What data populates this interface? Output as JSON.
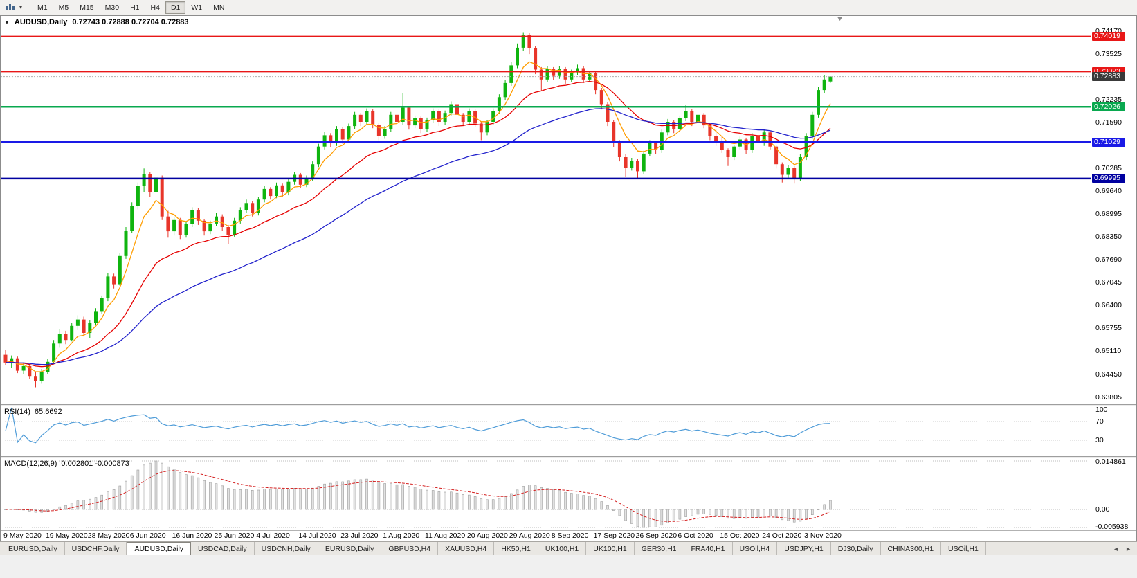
{
  "colors": {
    "up": "#0fb40f",
    "down": "#e8352a",
    "ma_fast": "#ff9d00",
    "ma_mid": "#e60000",
    "ma_slow": "#2222cc",
    "rsi_line": "#4f9cd8",
    "macd_bar_fill": "#e2e2e2",
    "macd_bar_stroke": "#9c9c9c",
    "macd_signal": "#d42020",
    "level_line": "#bcbcbc",
    "current_price_line": "#b0b0b0",
    "current_badge": "#3a3a3a",
    "shift_marker": "#8a8a8a"
  },
  "icons": {
    "chart_menu_caret": "▼",
    "toolbar_caret": "▾",
    "tab_scroll_left": "◄",
    "tab_scroll_right": "►"
  },
  "toolbar": {
    "timeframes": [
      "M1",
      "M5",
      "M15",
      "M30",
      "H1",
      "H4",
      "D1",
      "W1",
      "MN"
    ],
    "active_timeframe": "D1"
  },
  "chart": {
    "title": "AUDUSD,Daily",
    "ohlc_text": "0.72743 0.72888 0.72704 0.72883"
  },
  "chart_data": {
    "type": "candlestick",
    "symbol": "AUDUSD",
    "timeframe": "Daily",
    "last_ohlc": {
      "open": 0.72743,
      "high": 0.72888,
      "low": 0.72704,
      "close": 0.72883
    },
    "current_price": 0.72883,
    "current_price_label": "0.72883",
    "y_range": [
      0.636,
      0.746
    ],
    "x_start": 7,
    "x_step": 8.7,
    "label_every": 7,
    "y_ticks": [
      "0.74170",
      "0.73525",
      "0.72235",
      "0.71590",
      "0.70285",
      "0.69640",
      "0.68995",
      "0.68350",
      "0.67690",
      "0.67045",
      "0.66400",
      "0.65755",
      "0.65110",
      "0.64450",
      "0.63805"
    ],
    "x_labels": [
      "9 May 2020",
      "19 May 2020",
      "28 May 2020",
      "6 Jun 2020",
      "16 Jun 2020",
      "25 Jun 2020",
      "4 Jul 2020",
      "14 Jul 2020",
      "23 Jul 2020",
      "1 Aug 2020",
      "11 Aug 2020",
      "20 Aug 2020",
      "29 Aug 2020",
      "8 Sep 2020",
      "17 Sep 2020",
      "26 Sep 2020",
      "6 Oct 2020",
      "15 Oct 2020",
      "24 Oct 2020",
      "3 Nov 2020"
    ],
    "hlines": [
      {
        "price": 0.74019,
        "label": "0.74019",
        "color": "#e81717",
        "width": 2
      },
      {
        "price": 0.73023,
        "label": "0.73023",
        "color": "#e81717",
        "width": 2
      },
      {
        "price": 0.72026,
        "label": "0.72026",
        "color": "#09a84f",
        "width": 2.5
      },
      {
        "price": 0.71029,
        "label": "0.71029",
        "color": "#1a1ae6",
        "width": 2.5
      },
      {
        "price": 0.69995,
        "label": "0.69995",
        "color": "#0000a0",
        "width": 2.5
      }
    ],
    "moving_averages": [
      {
        "period": 6,
        "color_key": "ma_fast"
      },
      {
        "period": 20,
        "color_key": "ma_mid"
      },
      {
        "period": 45,
        "color_key": "ma_slow"
      }
    ],
    "indicators": {
      "rsi": {
        "label": "RSI(14)",
        "value_text": "65.6692",
        "period": 14,
        "levels": [
          100,
          70,
          30
        ],
        "range": [
          0,
          100
        ]
      },
      "macd": {
        "label": "MACD(12,26,9)",
        "values_text": "0.002801 -0.000873",
        "fast": 12,
        "slow": 26,
        "signal": 9,
        "levels": [
          "0.014861",
          "0.00",
          "-0.005938"
        ]
      }
    },
    "candles": [
      [
        0.65,
        0.6515,
        0.647,
        0.6478
      ],
      [
        0.6478,
        0.6498,
        0.6462,
        0.649
      ],
      [
        0.649,
        0.6495,
        0.6448,
        0.6455
      ],
      [
        0.6455,
        0.6478,
        0.6445,
        0.6468
      ],
      [
        0.6468,
        0.6472,
        0.6432,
        0.644
      ],
      [
        0.644,
        0.6452,
        0.6408,
        0.6425
      ],
      [
        0.6425,
        0.646,
        0.6418,
        0.6452
      ],
      [
        0.6452,
        0.6488,
        0.6446,
        0.648
      ],
      [
        0.648,
        0.6542,
        0.6475,
        0.6532
      ],
      [
        0.6532,
        0.6572,
        0.652,
        0.656
      ],
      [
        0.656,
        0.6568,
        0.653,
        0.6542
      ],
      [
        0.6542,
        0.659,
        0.6538,
        0.6582
      ],
      [
        0.6582,
        0.6612,
        0.657,
        0.66
      ],
      [
        0.66,
        0.6608,
        0.6552,
        0.6562
      ],
      [
        0.6562,
        0.6598,
        0.6548,
        0.659
      ],
      [
        0.659,
        0.6632,
        0.6584,
        0.6622
      ],
      [
        0.6622,
        0.6668,
        0.6616,
        0.666
      ],
      [
        0.666,
        0.6732,
        0.6652,
        0.6722
      ],
      [
        0.6722,
        0.673,
        0.6688,
        0.67
      ],
      [
        0.67,
        0.6788,
        0.6695,
        0.678
      ],
      [
        0.678,
        0.6862,
        0.6772,
        0.6852
      ],
      [
        0.6852,
        0.6932,
        0.6845,
        0.6922
      ],
      [
        0.6922,
        0.6988,
        0.6912,
        0.6978
      ],
      [
        0.6978,
        0.7028,
        0.6962,
        0.7012
      ],
      [
        0.7012,
        0.7018,
        0.6948,
        0.6962
      ],
      [
        0.6962,
        0.7042,
        0.6955,
        0.7002
      ],
      [
        0.7002,
        0.7008,
        0.6882,
        0.6892
      ],
      [
        0.6892,
        0.6908,
        0.6832,
        0.685
      ],
      [
        0.685,
        0.6892,
        0.6838,
        0.6882
      ],
      [
        0.6882,
        0.6888,
        0.6828,
        0.684
      ],
      [
        0.684,
        0.6878,
        0.6832,
        0.687
      ],
      [
        0.687,
        0.6918,
        0.6862,
        0.691
      ],
      [
        0.691,
        0.6915,
        0.6868,
        0.688
      ],
      [
        0.688,
        0.6885,
        0.6838,
        0.685
      ],
      [
        0.685,
        0.688,
        0.6842,
        0.6872
      ],
      [
        0.6872,
        0.6902,
        0.6865,
        0.6892
      ],
      [
        0.6892,
        0.6898,
        0.6852,
        0.6862
      ],
      [
        0.6862,
        0.6868,
        0.6815,
        0.684
      ],
      [
        0.684,
        0.6888,
        0.6835,
        0.688
      ],
      [
        0.688,
        0.6918,
        0.6872,
        0.691
      ],
      [
        0.691,
        0.694,
        0.6902,
        0.693
      ],
      [
        0.693,
        0.6935,
        0.6892,
        0.6902
      ],
      [
        0.6902,
        0.6948,
        0.6895,
        0.694
      ],
      [
        0.694,
        0.6978,
        0.6932,
        0.697
      ],
      [
        0.697,
        0.6975,
        0.694,
        0.695
      ],
      [
        0.695,
        0.6988,
        0.6944,
        0.698
      ],
      [
        0.698,
        0.6985,
        0.6948,
        0.696
      ],
      [
        0.696,
        0.6998,
        0.6952,
        0.699
      ],
      [
        0.699,
        0.7018,
        0.6982,
        0.701
      ],
      [
        0.701,
        0.7015,
        0.6972,
        0.6982
      ],
      [
        0.6982,
        0.7008,
        0.6975,
        0.7
      ],
      [
        0.7,
        0.7048,
        0.6992,
        0.704
      ],
      [
        0.704,
        0.7098,
        0.7032,
        0.709
      ],
      [
        0.709,
        0.7132,
        0.7082,
        0.7122
      ],
      [
        0.7122,
        0.7128,
        0.7088,
        0.71
      ],
      [
        0.71,
        0.7148,
        0.7092,
        0.714
      ],
      [
        0.714,
        0.7145,
        0.7098,
        0.711
      ],
      [
        0.711,
        0.7155,
        0.7102,
        0.7148
      ],
      [
        0.7148,
        0.7188,
        0.714,
        0.718
      ],
      [
        0.718,
        0.7185,
        0.7148,
        0.716
      ],
      [
        0.716,
        0.7198,
        0.7152,
        0.719
      ],
      [
        0.719,
        0.7195,
        0.7142,
        0.7152
      ],
      [
        0.7152,
        0.7158,
        0.7108,
        0.712
      ],
      [
        0.712,
        0.7148,
        0.7112,
        0.714
      ],
      [
        0.714,
        0.7188,
        0.7132,
        0.718
      ],
      [
        0.718,
        0.7186,
        0.7148,
        0.716
      ],
      [
        0.716,
        0.7242,
        0.7152,
        0.72
      ],
      [
        0.72,
        0.7205,
        0.7138,
        0.715
      ],
      [
        0.715,
        0.7178,
        0.7142,
        0.717
      ],
      [
        0.717,
        0.7175,
        0.7128,
        0.714
      ],
      [
        0.714,
        0.7172,
        0.7132,
        0.7165
      ],
      [
        0.7165,
        0.7198,
        0.7158,
        0.719
      ],
      [
        0.719,
        0.7195,
        0.7148,
        0.716
      ],
      [
        0.716,
        0.7192,
        0.7152,
        0.7185
      ],
      [
        0.7185,
        0.7218,
        0.7178,
        0.721
      ],
      [
        0.721,
        0.7215,
        0.7172,
        0.718
      ],
      [
        0.718,
        0.7185,
        0.7148,
        0.716
      ],
      [
        0.716,
        0.7198,
        0.7152,
        0.719
      ],
      [
        0.719,
        0.7195,
        0.7145,
        0.7155
      ],
      [
        0.7155,
        0.716,
        0.7108,
        0.713
      ],
      [
        0.713,
        0.7165,
        0.7122,
        0.716
      ],
      [
        0.716,
        0.7198,
        0.7152,
        0.719
      ],
      [
        0.719,
        0.7238,
        0.7182,
        0.723
      ],
      [
        0.723,
        0.7278,
        0.7222,
        0.727
      ],
      [
        0.727,
        0.733,
        0.7262,
        0.732
      ],
      [
        0.732,
        0.7382,
        0.7312,
        0.737
      ],
      [
        0.737,
        0.7414,
        0.736,
        0.7405
      ],
      [
        0.7405,
        0.7412,
        0.7352,
        0.7368
      ],
      [
        0.7368,
        0.7375,
        0.7295,
        0.7308
      ],
      [
        0.7308,
        0.7315,
        0.7248,
        0.728
      ],
      [
        0.728,
        0.7318,
        0.7272,
        0.731
      ],
      [
        0.731,
        0.7315,
        0.7278,
        0.729
      ],
      [
        0.729,
        0.7318,
        0.7282,
        0.731
      ],
      [
        0.731,
        0.7315,
        0.7268,
        0.728
      ],
      [
        0.728,
        0.7308,
        0.7272,
        0.73
      ],
      [
        0.73,
        0.7322,
        0.7292,
        0.7312
      ],
      [
        0.7312,
        0.7318,
        0.727,
        0.728
      ],
      [
        0.728,
        0.7305,
        0.7272,
        0.7298
      ],
      [
        0.7298,
        0.7302,
        0.7238,
        0.725
      ],
      [
        0.725,
        0.7256,
        0.7195,
        0.721
      ],
      [
        0.721,
        0.7215,
        0.7148,
        0.716
      ],
      [
        0.716,
        0.7165,
        0.7088,
        0.71
      ],
      [
        0.71,
        0.7108,
        0.7048,
        0.706
      ],
      [
        0.706,
        0.7068,
        0.7005,
        0.703
      ],
      [
        0.703,
        0.7058,
        0.7022,
        0.705
      ],
      [
        0.705,
        0.7055,
        0.7,
        0.702
      ],
      [
        0.702,
        0.7078,
        0.7012,
        0.707
      ],
      [
        0.707,
        0.7108,
        0.7062,
        0.71
      ],
      [
        0.71,
        0.7105,
        0.7068,
        0.708
      ],
      [
        0.708,
        0.7138,
        0.7072,
        0.713
      ],
      [
        0.713,
        0.7168,
        0.7122,
        0.716
      ],
      [
        0.716,
        0.7165,
        0.7128,
        0.714
      ],
      [
        0.714,
        0.7178,
        0.7132,
        0.717
      ],
      [
        0.717,
        0.7208,
        0.7162,
        0.719
      ],
      [
        0.719,
        0.7195,
        0.7148,
        0.716
      ],
      [
        0.716,
        0.7188,
        0.7152,
        0.718
      ],
      [
        0.718,
        0.7185,
        0.7142,
        0.715
      ],
      [
        0.715,
        0.7155,
        0.7108,
        0.712
      ],
      [
        0.712,
        0.7138,
        0.7092,
        0.71
      ],
      [
        0.71,
        0.7118,
        0.7072,
        0.708
      ],
      [
        0.708,
        0.7085,
        0.7035,
        0.706
      ],
      [
        0.706,
        0.7095,
        0.7052,
        0.709
      ],
      [
        0.709,
        0.7118,
        0.7082,
        0.711
      ],
      [
        0.711,
        0.7115,
        0.7068,
        0.708
      ],
      [
        0.708,
        0.7128,
        0.7072,
        0.712
      ],
      [
        0.712,
        0.7125,
        0.7088,
        0.71
      ],
      [
        0.71,
        0.7138,
        0.7092,
        0.713
      ],
      [
        0.713,
        0.7135,
        0.7082,
        0.709
      ],
      [
        0.709,
        0.7095,
        0.7028,
        0.704
      ],
      [
        0.704,
        0.7045,
        0.6988,
        0.701
      ],
      [
        0.701,
        0.7038,
        0.7002,
        0.703
      ],
      [
        0.703,
        0.7035,
        0.6985,
        0.7
      ],
      [
        0.7,
        0.7068,
        0.6992,
        0.706
      ],
      [
        0.706,
        0.7128,
        0.7052,
        0.712
      ],
      [
        0.712,
        0.7188,
        0.7112,
        0.718
      ],
      [
        0.718,
        0.7258,
        0.7172,
        0.725
      ],
      [
        0.725,
        0.7292,
        0.7242,
        0.728
      ],
      [
        0.72743,
        0.72888,
        0.72704,
        0.72883
      ]
    ]
  },
  "tabs": {
    "items": [
      "EURUSD,Daily",
      "USDCHF,Daily",
      "AUDUSD,Daily",
      "USDCAD,Daily",
      "USDCNH,Daily",
      "EURUSD,Daily",
      "GBPUSD,H4",
      "XAUUSD,H4",
      "HK50,H1",
      "UK100,H1",
      "UK100,H1",
      "GER30,H1",
      "FRA40,H1",
      "USOil,H4",
      "USDJPY,H1",
      "DJ30,Daily",
      "CHINA300,H1",
      "USOil,H1"
    ],
    "active_index": 2
  }
}
